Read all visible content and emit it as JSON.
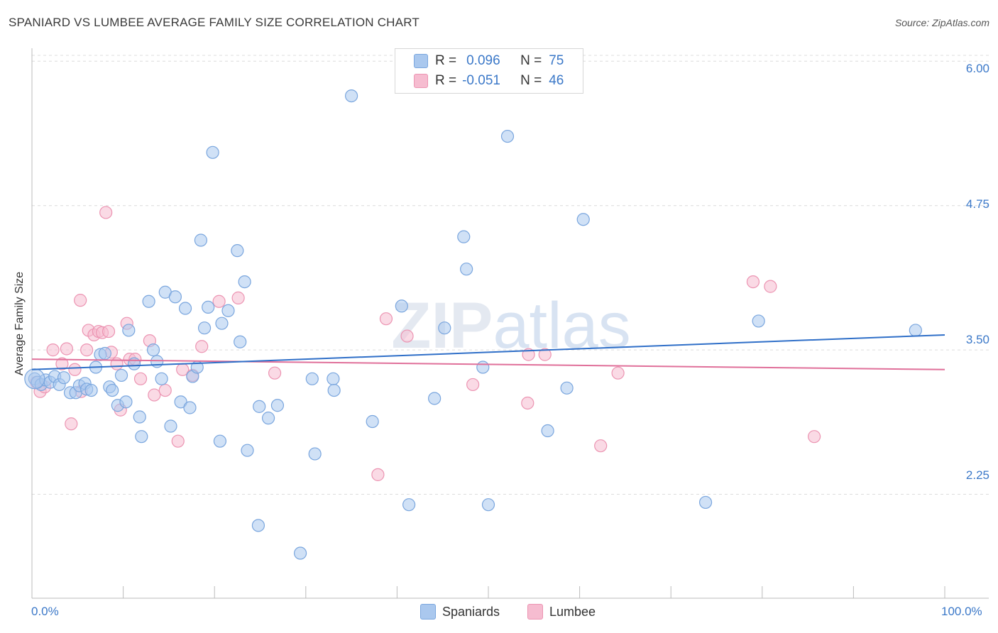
{
  "title": "SPANIARD VS LUMBEE AVERAGE FAMILY SIZE CORRELATION CHART",
  "source": "Source: ZipAtlas.com",
  "watermark": "ZIPatlas",
  "legend": {
    "rows": [
      {
        "r_label": "R =",
        "r_value": "0.096",
        "n_label": "N =",
        "n_value": "75"
      },
      {
        "r_label": "R =",
        "r_value": "-0.051",
        "n_label": "N =",
        "n_value": "46"
      }
    ]
  },
  "bottom_legend": [
    "Spaniards",
    "Lumbee"
  ],
  "colors": {
    "spaniards_fill": "#aac8ee",
    "spaniards_stroke": "#7aa6de",
    "spaniards_line": "#2f6fc8",
    "lumbee_fill": "#f6bcd0",
    "lumbee_stroke": "#ec94b2",
    "lumbee_line": "#e0709a",
    "tick_text": "#3b78c8",
    "grid": "#dcdcdc"
  },
  "chart_data": {
    "type": "scatter",
    "title": "SPANIARD VS LUMBEE AVERAGE FAMILY SIZE CORRELATION CHART",
    "xlabel": "",
    "ylabel": "Average Family Size",
    "xlim": [
      0,
      100
    ],
    "ylim": [
      1.35,
      6.1
    ],
    "x_tick_labels": [
      "0.0%",
      "100.0%"
    ],
    "y_ticks": [
      2.25,
      3.5,
      4.75,
      6.0
    ],
    "y_tick_labels": [
      "2.25",
      "3.50",
      "4.75",
      "6.00"
    ],
    "grid": "horizontal dashed",
    "legend_position": "top-center",
    "series": [
      {
        "name": "Spaniards",
        "trend": [
          [
            0,
            3.33
          ],
          [
            100,
            3.63
          ]
        ],
        "points": [
          [
            0.3,
            3.25
          ],
          [
            0.6,
            3.22
          ],
          [
            1.0,
            3.2
          ],
          [
            1.5,
            3.24
          ],
          [
            2.0,
            3.22
          ],
          [
            2.5,
            3.27
          ],
          [
            3.0,
            3.2
          ],
          [
            3.5,
            3.26
          ],
          [
            4.2,
            3.13
          ],
          [
            4.8,
            3.13
          ],
          [
            5.2,
            3.19
          ],
          [
            5.8,
            3.21
          ],
          [
            6.0,
            3.16
          ],
          [
            6.5,
            3.15
          ],
          [
            7.0,
            3.35
          ],
          [
            7.5,
            3.46
          ],
          [
            8.0,
            3.47
          ],
          [
            8.5,
            3.18
          ],
          [
            8.8,
            3.15
          ],
          [
            9.4,
            3.02
          ],
          [
            9.8,
            3.28
          ],
          [
            10.3,
            3.05
          ],
          [
            10.6,
            3.67
          ],
          [
            11.2,
            3.38
          ],
          [
            11.8,
            2.92
          ],
          [
            12.0,
            2.75
          ],
          [
            12.8,
            3.92
          ],
          [
            13.3,
            3.5
          ],
          [
            13.7,
            3.4
          ],
          [
            14.2,
            3.25
          ],
          [
            14.6,
            4.0
          ],
          [
            15.2,
            2.84
          ],
          [
            15.7,
            3.96
          ],
          [
            16.3,
            3.05
          ],
          [
            16.8,
            3.86
          ],
          [
            17.3,
            3.0
          ],
          [
            17.6,
            3.27
          ],
          [
            18.1,
            3.35
          ],
          [
            18.5,
            4.45
          ],
          [
            18.9,
            3.69
          ],
          [
            19.3,
            3.87
          ],
          [
            19.8,
            5.21
          ],
          [
            20.6,
            2.71
          ],
          [
            20.8,
            3.73
          ],
          [
            21.5,
            3.84
          ],
          [
            22.5,
            4.36
          ],
          [
            22.8,
            3.57
          ],
          [
            23.3,
            4.09
          ],
          [
            23.6,
            2.63
          ],
          [
            24.8,
            1.98
          ],
          [
            24.9,
            3.01
          ],
          [
            25.9,
            2.91
          ],
          [
            26.9,
            3.02
          ],
          [
            29.4,
            1.74
          ],
          [
            30.7,
            3.25
          ],
          [
            31.0,
            2.6
          ],
          [
            33.0,
            3.25
          ],
          [
            33.1,
            3.15
          ],
          [
            35.0,
            5.7
          ],
          [
            37.3,
            2.88
          ],
          [
            40.5,
            3.88
          ],
          [
            41.3,
            2.16
          ],
          [
            44.1,
            3.08
          ],
          [
            45.2,
            3.69
          ],
          [
            47.3,
            4.48
          ],
          [
            47.6,
            4.2
          ],
          [
            49.4,
            3.35
          ],
          [
            50.0,
            2.16
          ],
          [
            52.1,
            5.35
          ],
          [
            56.5,
            2.8
          ],
          [
            58.6,
            3.17
          ],
          [
            60.4,
            4.63
          ],
          [
            73.8,
            2.18
          ],
          [
            79.6,
            3.75
          ],
          [
            96.8,
            3.67
          ]
        ]
      },
      {
        "name": "Lumbee",
        "trend": [
          [
            0,
            3.42
          ],
          [
            100,
            3.33
          ]
        ],
        "points": [
          [
            0.5,
            3.22
          ],
          [
            0.9,
            3.14
          ],
          [
            1.4,
            3.18
          ],
          [
            2.3,
            3.5
          ],
          [
            3.3,
            3.38
          ],
          [
            3.8,
            3.51
          ],
          [
            4.3,
            2.86
          ],
          [
            4.7,
            3.33
          ],
          [
            5.4,
            3.14
          ],
          [
            5.3,
            3.93
          ],
          [
            6.0,
            3.5
          ],
          [
            6.2,
            3.67
          ],
          [
            6.8,
            3.63
          ],
          [
            7.3,
            3.66
          ],
          [
            7.7,
            3.65
          ],
          [
            8.1,
            4.69
          ],
          [
            8.4,
            3.66
          ],
          [
            8.7,
            3.48
          ],
          [
            9.3,
            3.38
          ],
          [
            9.7,
            2.98
          ],
          [
            10.4,
            3.73
          ],
          [
            10.7,
            3.42
          ],
          [
            11.3,
            3.42
          ],
          [
            11.9,
            3.25
          ],
          [
            12.9,
            3.58
          ],
          [
            13.4,
            3.11
          ],
          [
            14.6,
            3.15
          ],
          [
            16.0,
            2.71
          ],
          [
            16.5,
            3.33
          ],
          [
            17.6,
            3.28
          ],
          [
            18.6,
            3.53
          ],
          [
            20.5,
            3.92
          ],
          [
            22.6,
            3.95
          ],
          [
            26.6,
            3.3
          ],
          [
            37.9,
            2.42
          ],
          [
            38.8,
            3.77
          ],
          [
            41.1,
            3.62
          ],
          [
            48.3,
            3.2
          ],
          [
            54.3,
            3.04
          ],
          [
            54.4,
            3.46
          ],
          [
            56.2,
            3.46
          ],
          [
            62.3,
            2.67
          ],
          [
            64.2,
            3.3
          ],
          [
            79.0,
            4.09
          ],
          [
            80.9,
            4.05
          ],
          [
            85.7,
            2.75
          ]
        ]
      }
    ]
  }
}
